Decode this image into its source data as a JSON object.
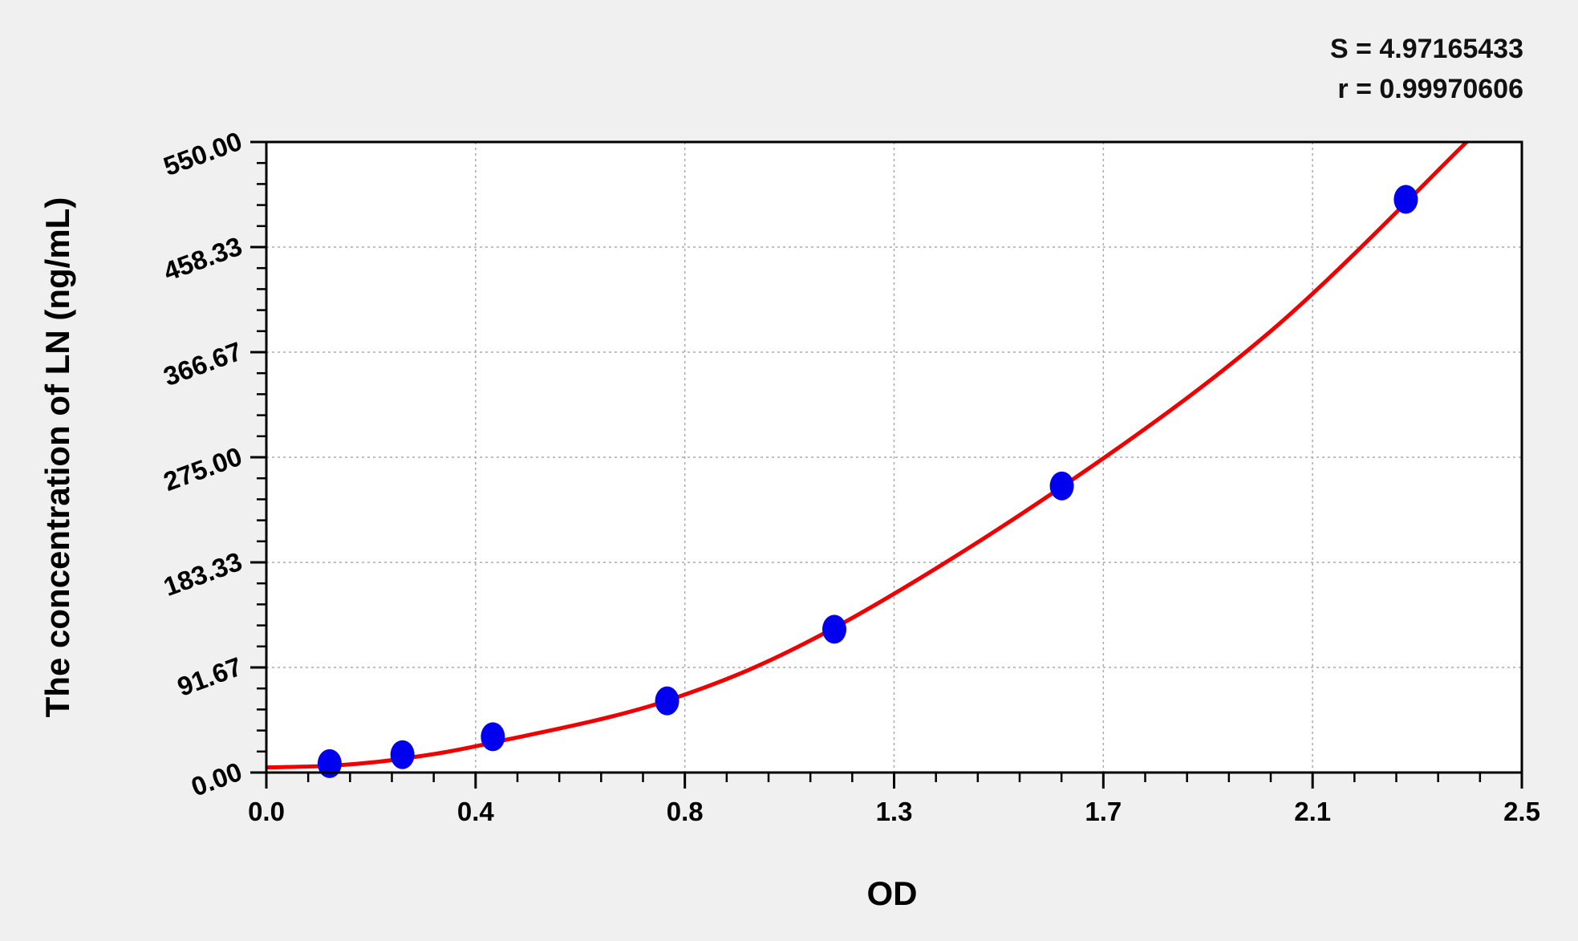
{
  "chart_data": {
    "type": "scatter",
    "title": "",
    "xlabel": "OD",
    "ylabel": "The concentration of LN (ng/mL)",
    "xlim": [
      0.0,
      2.5
    ],
    "ylim": [
      0.0,
      550.0
    ],
    "x_tick_labels": [
      "0.0",
      "0.4",
      "0.8",
      "1.3",
      "1.7",
      "2.1",
      "2.5"
    ],
    "y_tick_labels": [
      "0.00",
      "91.67",
      "183.33",
      "275.00",
      "366.67",
      "458.33",
      "550.00"
    ],
    "grid": true,
    "points": {
      "x": [
        0.126,
        0.271,
        0.451,
        0.798,
        1.131,
        1.584,
        2.269
      ],
      "y": [
        7.8,
        15.6,
        31.25,
        62.5,
        125,
        250,
        500
      ],
      "color": "#0000ee"
    },
    "fit_curve": {
      "x": [
        0.0,
        0.13,
        0.27,
        0.45,
        0.8,
        1.13,
        1.58,
        2.0,
        2.39
      ],
      "y": [
        4.5,
        6,
        12,
        26,
        63,
        126,
        248,
        385,
        550
      ],
      "color": "#ee0000"
    },
    "annotations": [
      "S = 4.97165433",
      "r = 0.99970606"
    ]
  }
}
